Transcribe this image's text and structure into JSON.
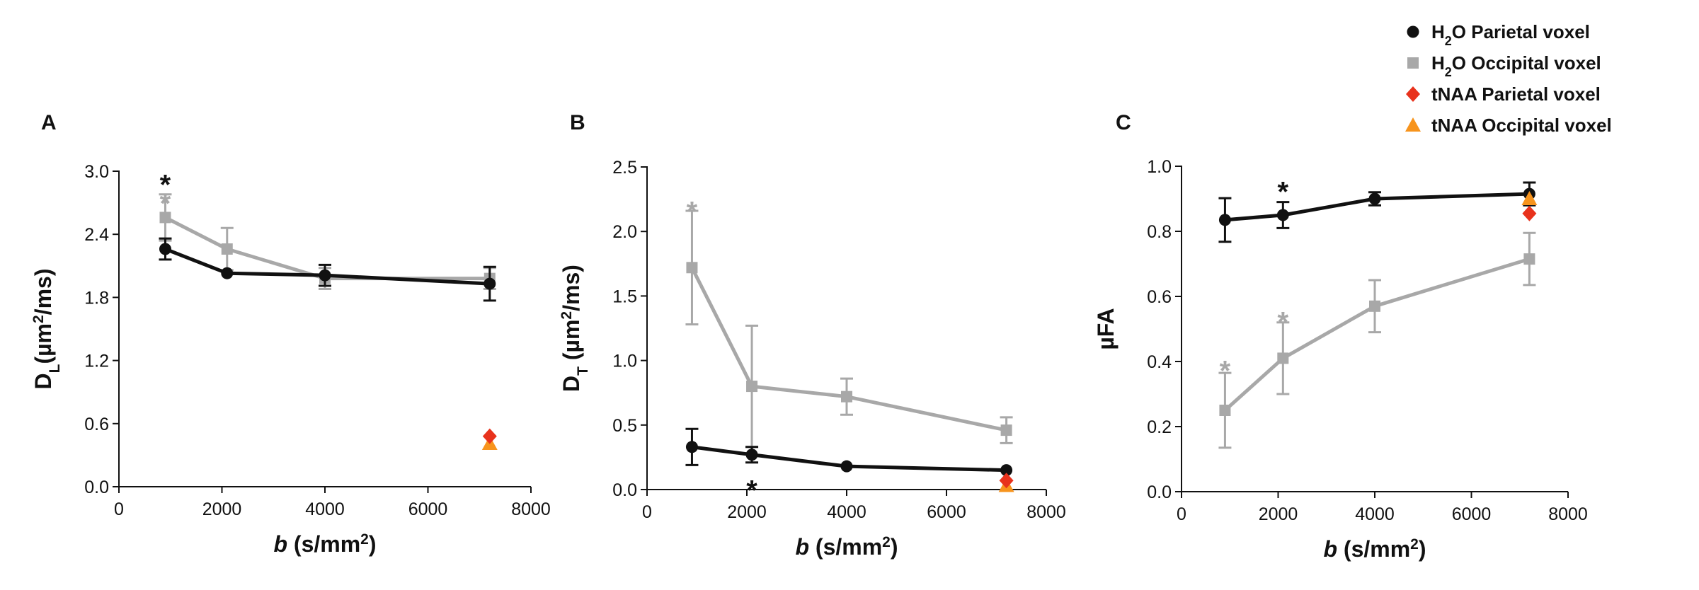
{
  "colors": {
    "h2o_parietal": "#111111",
    "h2o_occipital": "#a8a8a8",
    "tnaa_parietal": "#e8321c",
    "tnaa_occipital": "#f7941d",
    "axis": "#111111"
  },
  "legend": [
    {
      "key": "h2o_parietal",
      "marker": "circle",
      "color": "#111111",
      "prefix": "H",
      "sub": "2",
      "suffix": "O Parietal voxel"
    },
    {
      "key": "h2o_occipital",
      "marker": "square",
      "color": "#a8a8a8",
      "prefix": "H",
      "sub": "2",
      "suffix": "O Occipital voxel"
    },
    {
      "key": "tnaa_parietal",
      "marker": "diamond",
      "color": "#e8321c",
      "prefix": "tNAA Parietal voxel",
      "sub": "",
      "suffix": ""
    },
    {
      "key": "tnaa_occipital",
      "marker": "triangle",
      "color": "#f7941d",
      "prefix": "tNAA Occipital voxel",
      "sub": "",
      "suffix": ""
    }
  ],
  "chart_data": [
    {
      "panel": "A",
      "type": "line",
      "xlabel": {
        "italic": "b",
        "main": " (s/mm",
        "sup": "2",
        "end": ")"
      },
      "ylabel": {
        "main": "D",
        "sub": "L",
        "rest": "(µm",
        "sup": "2",
        "end": "/ms)"
      },
      "xlim": [
        0,
        8000
      ],
      "ylim": [
        0,
        3.0
      ],
      "xticks": [
        0,
        2000,
        4000,
        6000,
        8000
      ],
      "yticks": [
        "0.0",
        "0.6",
        "1.2",
        "1.8",
        "2.4",
        "3.0"
      ],
      "series": [
        {
          "name": "H2O Occipital voxel",
          "key": "h2o_occipital",
          "marker": "square",
          "x": [
            900,
            2100,
            4000,
            7200
          ],
          "y": [
            2.56,
            2.26,
            1.98,
            1.98
          ],
          "err": [
            0.22,
            0.2,
            0.1,
            0.1
          ]
        },
        {
          "name": "H2O Parietal voxel",
          "key": "h2o_parietal",
          "marker": "circle",
          "x": [
            900,
            2100,
            4000,
            7200
          ],
          "y": [
            2.26,
            2.03,
            2.01,
            1.93
          ],
          "err": [
            0.1,
            0.0,
            0.1,
            0.16
          ]
        }
      ],
      "points": [
        {
          "name": "tNAA Occipital voxel",
          "key": "tnaa_occipital",
          "marker": "triangle",
          "x": 7200,
          "y": 0.41
        },
        {
          "name": "tNAA Parietal voxel",
          "key": "tnaa_parietal",
          "marker": "diamond",
          "x": 7200,
          "y": 0.48
        }
      ],
      "annotations": [
        {
          "text": "*",
          "key": "h2o_parietal",
          "x": 900,
          "y": 2.93
        },
        {
          "text": "*",
          "key": "h2o_occipital",
          "x": 900,
          "y": 2.75
        }
      ]
    },
    {
      "panel": "B",
      "type": "line",
      "xlabel": {
        "italic": "b",
        "main": " (s/mm",
        "sup": "2",
        "end": ")"
      },
      "ylabel": {
        "main": "D",
        "sub": "T",
        "rest": " (µm",
        "sup": "2",
        "end": "/ms)"
      },
      "xlim": [
        0,
        8000
      ],
      "ylim": [
        0,
        2.5
      ],
      "xticks": [
        0,
        2000,
        4000,
        6000,
        8000
      ],
      "yticks": [
        "0.0",
        "0.5",
        "1.0",
        "1.5",
        "2.0",
        "2.5"
      ],
      "series": [
        {
          "name": "H2O Occipital voxel",
          "key": "h2o_occipital",
          "marker": "square",
          "x": [
            900,
            2100,
            4000,
            7200
          ],
          "y": [
            1.72,
            0.8,
            0.72,
            0.46
          ],
          "err": [
            0.44,
            0.47,
            0.14,
            0.1
          ]
        },
        {
          "name": "H2O Parietal voxel",
          "key": "h2o_parietal",
          "marker": "circle",
          "x": [
            900,
            2100,
            4000,
            7200
          ],
          "y": [
            0.33,
            0.27,
            0.18,
            0.15
          ],
          "err": [
            0.14,
            0.06,
            0.0,
            0.0
          ]
        }
      ],
      "points": [
        {
          "name": "tNAA Occipital voxel",
          "key": "tnaa_occipital",
          "marker": "triangle",
          "x": 7200,
          "y": 0.03
        },
        {
          "name": "tNAA Parietal voxel",
          "key": "tnaa_parietal",
          "marker": "diamond",
          "x": 7200,
          "y": 0.07
        }
      ],
      "annotations": [
        {
          "text": "*",
          "key": "h2o_occipital",
          "x": 900,
          "y": 2.2
        },
        {
          "text": "*",
          "key": "h2o_parietal",
          "x": 2100,
          "y": 0.04
        }
      ]
    },
    {
      "panel": "C",
      "type": "line",
      "xlabel": {
        "italic": "b",
        "main": " (s/mm",
        "sup": "2",
        "end": ")"
      },
      "ylabel": {
        "main": "µFA",
        "sub": "",
        "rest": "",
        "sup": "",
        "end": ""
      },
      "xlim": [
        0,
        8000
      ],
      "ylim": [
        0,
        1.0
      ],
      "xticks": [
        0,
        2000,
        4000,
        6000,
        8000
      ],
      "yticks": [
        "0.0",
        "0.2",
        "0.4",
        "0.6",
        "0.8",
        "1.0"
      ],
      "series": [
        {
          "name": "H2O Occipital voxel",
          "key": "h2o_occipital",
          "marker": "square",
          "x": [
            900,
            2100,
            4000,
            7200
          ],
          "y": [
            0.25,
            0.41,
            0.57,
            0.715
          ],
          "err": [
            0.115,
            0.11,
            0.08,
            0.08
          ]
        },
        {
          "name": "H2O Parietal voxel",
          "key": "h2o_parietal",
          "marker": "circle",
          "x": [
            900,
            2100,
            4000,
            7200
          ],
          "y": [
            0.835,
            0.85,
            0.9,
            0.915
          ],
          "err": [
            0.067,
            0.04,
            0.02,
            0.035
          ]
        }
      ],
      "points": [
        {
          "name": "tNAA Occipital voxel",
          "key": "tnaa_occipital",
          "marker": "triangle",
          "x": 7200,
          "y": 0.9
        },
        {
          "name": "tNAA Parietal voxel",
          "key": "tnaa_parietal",
          "marker": "diamond",
          "x": 7200,
          "y": 0.855
        }
      ],
      "annotations": [
        {
          "text": "*",
          "key": "h2o_parietal",
          "x": 2100,
          "y": 0.94
        },
        {
          "text": "*",
          "key": "h2o_occipital",
          "x": 900,
          "y": 0.39
        },
        {
          "text": "*",
          "key": "h2o_occipital",
          "x": 2100,
          "y": 0.54
        }
      ]
    }
  ]
}
